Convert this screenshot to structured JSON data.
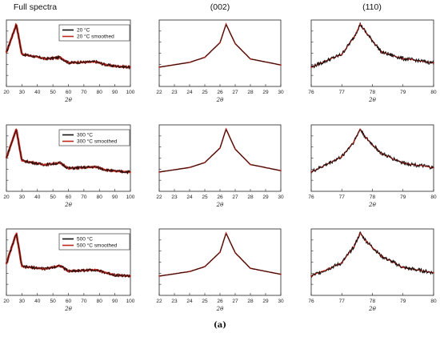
{
  "caption": "(a)",
  "colors": {
    "raw": "#111111",
    "smoothed": "#c0281c"
  },
  "chart_data": [
    {
      "type": "line",
      "column_title": "Full spectra",
      "xlabel": "2θ",
      "xlim": [
        20,
        100
      ],
      "xticks": [
        "20",
        "30",
        "40",
        "50",
        "60",
        "70",
        "80",
        "90",
        "100"
      ],
      "y_scale": "log",
      "legend": {
        "placement": "top-right",
        "entries": [
          "20 °C",
          "20 °C smoothed"
        ]
      },
      "series": [
        {
          "name": "20 °C",
          "x": [
            20,
            26.4,
            30,
            43.5,
            45,
            54.6,
            60,
            77.6,
            84,
            90,
            100
          ],
          "y": [
            380,
            5200,
            330,
            230,
            215,
            245,
            150,
            165,
            125,
            110,
            100
          ]
        },
        {
          "name": "20 °C smoothed",
          "x": [
            20,
            26.4,
            30,
            43.5,
            45,
            54.6,
            60,
            77.6,
            84,
            90,
            100
          ],
          "y": [
            380,
            5200,
            330,
            230,
            215,
            245,
            150,
            165,
            125,
            110,
            100
          ]
        }
      ]
    },
    {
      "type": "line",
      "column_title": "(002)",
      "xlabel": "2θ",
      "xlim": [
        22,
        30
      ],
      "xticks": [
        "22",
        "23",
        "24",
        "25",
        "26",
        "27",
        "28",
        "29",
        "30"
      ],
      "y_scale": "log",
      "series": [
        {
          "name": "",
          "x": [
            22,
            24,
            25,
            26,
            26.4,
            27,
            28,
            30
          ],
          "y": [
            330,
            450,
            620,
            1600,
            5200,
            1500,
            560,
            380
          ]
        }
      ]
    },
    {
      "type": "line",
      "column_title": "(110)",
      "xlabel": "2θ",
      "xlim": [
        76,
        80
      ],
      "xticks": [
        "76",
        "77",
        "78",
        "79",
        "80"
      ],
      "series": [
        {
          "name": "",
          "x": [
            76,
            77,
            77.4,
            77.6,
            77.8,
            78.3,
            79,
            80
          ],
          "y": [
            60,
            90,
            130,
            160,
            140,
            95,
            80,
            70
          ]
        }
      ]
    },
    {
      "type": "line",
      "xlabel": "2θ",
      "xlim": [
        20,
        100
      ],
      "xticks": [
        "20",
        "30",
        "40",
        "50",
        "60",
        "70",
        "80",
        "90",
        "100"
      ],
      "y_scale": "log",
      "legend": {
        "placement": "top-right",
        "entries": [
          "300 °C",
          "300 °C smoothed"
        ]
      },
      "series": [
        {
          "name": "300 °C",
          "x": [
            20,
            26.4,
            30,
            43.5,
            45,
            54.6,
            60,
            77.6,
            84,
            90,
            100
          ],
          "y": [
            360,
            5000,
            280,
            200,
            195,
            230,
            140,
            160,
            122,
            108,
            100
          ]
        },
        {
          "name": "300 °C smoothed",
          "x": [
            20,
            26.4,
            30,
            43.5,
            45,
            54.6,
            60,
            77.6,
            84,
            90,
            100
          ],
          "y": [
            360,
            5000,
            280,
            200,
            195,
            230,
            140,
            160,
            122,
            108,
            100
          ]
        }
      ]
    },
    {
      "type": "line",
      "xlabel": "2θ",
      "xlim": [
        22,
        30
      ],
      "xticks": [
        "22",
        "23",
        "24",
        "25",
        "26",
        "27",
        "28",
        "29",
        "30"
      ],
      "y_scale": "log",
      "series": [
        {
          "name": "",
          "x": [
            22,
            24,
            25,
            26,
            26.4,
            27,
            28,
            30
          ],
          "y": [
            340,
            450,
            610,
            1500,
            4800,
            1400,
            540,
            370
          ]
        }
      ]
    },
    {
      "type": "line",
      "xlabel": "2θ",
      "xlim": [
        76,
        80
      ],
      "xticks": [
        "76",
        "77",
        "78",
        "79",
        "80"
      ],
      "series": [
        {
          "name": "",
          "x": [
            76,
            77,
            77.4,
            77.6,
            77.8,
            78.3,
            79,
            80
          ],
          "y": [
            55,
            80,
            105,
            125,
            110,
            85,
            70,
            62
          ]
        }
      ]
    },
    {
      "type": "line",
      "xlabel": "2θ",
      "xlim": [
        20,
        100
      ],
      "xticks": [
        "20",
        "30",
        "40",
        "50",
        "60",
        "70",
        "80",
        "90",
        "100"
      ],
      "y_scale": "log",
      "legend": {
        "placement": "top-right",
        "entries": [
          "500 °C",
          "500 °C smoothed"
        ]
      },
      "series": [
        {
          "name": "500 °C",
          "x": [
            20,
            26.4,
            30,
            43.5,
            45,
            54.6,
            60,
            77.6,
            84,
            90,
            100
          ],
          "y": [
            300,
            5000,
            230,
            190,
            185,
            250,
            150,
            170,
            130,
            105,
            95
          ]
        },
        {
          "name": "500 °C smoothed",
          "x": [
            20,
            26.4,
            30,
            43.5,
            45,
            54.6,
            60,
            77.6,
            84,
            90,
            100
          ],
          "y": [
            300,
            5000,
            230,
            190,
            185,
            250,
            150,
            170,
            130,
            105,
            95
          ]
        }
      ]
    },
    {
      "type": "line",
      "xlabel": "2θ",
      "xlim": [
        22,
        30
      ],
      "xticks": [
        "22",
        "23",
        "24",
        "25",
        "26",
        "27",
        "28",
        "29",
        "30"
      ],
      "y_scale": "log",
      "series": [
        {
          "name": "",
          "x": [
            22,
            24,
            25,
            26,
            26.4,
            27,
            28,
            30
          ],
          "y": [
            330,
            440,
            600,
            1500,
            5000,
            1450,
            540,
            370
          ]
        }
      ]
    },
    {
      "type": "line",
      "xlabel": "2θ",
      "xlim": [
        76,
        80
      ],
      "xticks": [
        "76",
        "77",
        "78",
        "79",
        "80"
      ],
      "series": [
        {
          "name": "",
          "x": [
            76,
            77,
            77.4,
            77.6,
            77.8,
            78.3,
            79,
            80
          ],
          "y": [
            55,
            75,
            100,
            120,
            108,
            85,
            68,
            60
          ]
        }
      ]
    }
  ]
}
